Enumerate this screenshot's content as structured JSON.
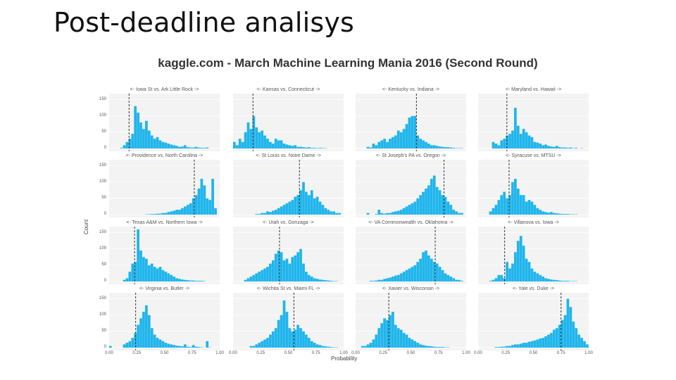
{
  "slide": {
    "title": "Post-deadline analisys"
  },
  "chart_data": {
    "type": "histogram-facets",
    "title": "kaggle.com - March Machine Learning Mania 2016 (Second Round)",
    "xlabel": "Probability",
    "ylabel": "Count",
    "xlim": [
      0,
      1
    ],
    "ylim": [
      0,
      160
    ],
    "y_ticks": [
      "0",
      "50",
      "100",
      "150"
    ],
    "x_ticks": [
      "0.00",
      "0.25",
      "0.50",
      "0.75",
      "1.00"
    ],
    "bar_color": "#1fb5ec",
    "bin_count": 40,
    "grid": true,
    "panels": [
      {
        "label": "<- Iowa St vs. Ark Little Rock ->",
        "cutoff": 0.18,
        "counts": [
          0,
          0,
          0,
          0,
          2,
          10,
          20,
          30,
          45,
          130,
          110,
          80,
          60,
          85,
          55,
          40,
          30,
          35,
          25,
          20,
          18,
          15,
          12,
          10,
          8,
          5,
          6,
          10,
          4,
          3,
          3,
          5,
          3,
          2,
          2,
          3,
          0,
          0,
          0,
          0
        ]
      },
      {
        "label": "<- Kansas vs. Connecticut ->",
        "cutoff": 0.18,
        "counts": [
          20,
          10,
          30,
          20,
          50,
          80,
          60,
          100,
          65,
          50,
          55,
          40,
          30,
          20,
          15,
          30,
          25,
          25,
          15,
          12,
          10,
          8,
          10,
          5,
          5,
          4,
          3,
          4,
          2,
          2,
          1,
          2,
          1,
          1,
          0,
          0,
          0,
          0,
          0,
          0
        ]
      },
      {
        "label": "<- Kentucky vs. Indiana ->",
        "cutoff": 0.55,
        "counts": [
          0,
          0,
          0,
          0,
          5,
          3,
          15,
          10,
          20,
          25,
          30,
          20,
          30,
          35,
          40,
          55,
          50,
          60,
          75,
          95,
          100,
          100,
          40,
          30,
          25,
          20,
          15,
          10,
          10,
          8,
          6,
          5,
          4,
          4,
          3,
          2,
          1,
          1,
          1,
          0
        ]
      },
      {
        "label": "<- Maryland vs. Hawaii ->",
        "cutoff": 0.26,
        "counts": [
          0,
          0,
          0,
          0,
          0,
          20,
          15,
          10,
          25,
          30,
          40,
          45,
          55,
          125,
          70,
          45,
          60,
          50,
          40,
          35,
          20,
          18,
          15,
          10,
          12,
          8,
          6,
          5,
          8,
          4,
          3,
          3,
          2,
          3,
          1,
          2,
          0,
          1,
          0,
          0
        ]
      },
      {
        "label": "<- Providence vs. North Carolina ->",
        "cutoff": 0.77,
        "counts": [
          0,
          0,
          0,
          0,
          0,
          0,
          0,
          0,
          0,
          0,
          0,
          0,
          0,
          1,
          1,
          2,
          2,
          3,
          3,
          5,
          5,
          8,
          10,
          12,
          15,
          15,
          20,
          25,
          30,
          35,
          50,
          60,
          80,
          110,
          90,
          50,
          45,
          110,
          20,
          0
        ]
      },
      {
        "label": "<- St Louis vs. Notre Dame ->",
        "cutoff": 0.6,
        "counts": [
          0,
          0,
          0,
          0,
          0,
          0,
          0,
          0,
          2,
          2,
          5,
          5,
          10,
          8,
          12,
          15,
          20,
          25,
          30,
          35,
          40,
          45,
          55,
          60,
          75,
          100,
          70,
          60,
          75,
          50,
          55,
          40,
          30,
          20,
          15,
          10,
          10,
          5,
          5,
          0
        ]
      },
      {
        "label": "<- St Joseph's PA vs. Oregon ->",
        "cutoff": 0.8,
        "counts": [
          0,
          0,
          0,
          0,
          5,
          0,
          0,
          2,
          15,
          5,
          3,
          5,
          5,
          8,
          10,
          12,
          15,
          20,
          25,
          30,
          35,
          40,
          50,
          60,
          70,
          80,
          90,
          110,
          120,
          85,
          75,
          60,
          55,
          40,
          30,
          15,
          10,
          5,
          5,
          0
        ]
      },
      {
        "label": "<- Syracuse vs. MTSU ->",
        "cutoff": 0.28,
        "counts": [
          0,
          0,
          0,
          0,
          10,
          20,
          30,
          45,
          60,
          70,
          50,
          60,
          100,
          110,
          80,
          60,
          60,
          40,
          45,
          40,
          30,
          20,
          15,
          10,
          8,
          6,
          8,
          5,
          4,
          3,
          2,
          2,
          2,
          1,
          1,
          1,
          0,
          0,
          0,
          0
        ]
      },
      {
        "label": "<- Texas A&M vs. Northern Iowa ->",
        "cutoff": 0.23,
        "counts": [
          0,
          0,
          0,
          0,
          0,
          5,
          10,
          30,
          55,
          60,
          160,
          95,
          75,
          70,
          50,
          55,
          45,
          40,
          45,
          35,
          30,
          25,
          20,
          15,
          10,
          8,
          6,
          5,
          4,
          3,
          3,
          2,
          2,
          2,
          1,
          0,
          0,
          0,
          0,
          0
        ]
      },
      {
        "label": "<- Utah vs. Gonzaga ->",
        "cutoff": 0.42,
        "counts": [
          0,
          0,
          0,
          0,
          5,
          10,
          15,
          20,
          25,
          30,
          35,
          40,
          45,
          55,
          65,
          85,
          95,
          90,
          65,
          70,
          55,
          75,
          80,
          90,
          100,
          55,
          30,
          20,
          15,
          10,
          8,
          6,
          5,
          4,
          3,
          2,
          1,
          1,
          0,
          0
        ]
      },
      {
        "label": "<- VA Commonwealth vs. Oklahoma ->",
        "cutoff": 0.72,
        "counts": [
          0,
          0,
          0,
          0,
          0,
          2,
          2,
          3,
          5,
          5,
          8,
          10,
          12,
          15,
          18,
          20,
          25,
          30,
          35,
          40,
          45,
          50,
          60,
          70,
          90,
          95,
          80,
          70,
          60,
          55,
          45,
          35,
          25,
          20,
          15,
          10,
          5,
          5,
          2,
          0
        ]
      },
      {
        "label": "<- Villanova vs. Iowa ->",
        "cutoff": 0.24,
        "counts": [
          0,
          0,
          0,
          0,
          2,
          5,
          10,
          20,
          20,
          10,
          60,
          40,
          55,
          90,
          125,
          140,
          110,
          70,
          60,
          40,
          30,
          25,
          20,
          15,
          10,
          8,
          6,
          5,
          4,
          3,
          2,
          2,
          2,
          1,
          1,
          1,
          0,
          0,
          0,
          0
        ]
      },
      {
        "label": "<- Virginia vs. Butler ->",
        "cutoff": 0.24,
        "counts": [
          5,
          0,
          0,
          0,
          0,
          10,
          15,
          20,
          30,
          45,
          70,
          90,
          110,
          130,
          100,
          60,
          40,
          30,
          25,
          20,
          15,
          12,
          10,
          8,
          6,
          5,
          4,
          10,
          3,
          2,
          8,
          3,
          2,
          1,
          0,
          20,
          1,
          0,
          0,
          0
        ]
      },
      {
        "label": "<- Wichita St vs. Miami FL ->",
        "cutoff": 0.55,
        "counts": [
          0,
          0,
          0,
          0,
          0,
          0,
          5,
          5,
          10,
          15,
          20,
          25,
          30,
          40,
          50,
          60,
          85,
          100,
          145,
          110,
          60,
          50,
          55,
          70,
          60,
          50,
          40,
          30,
          20,
          15,
          10,
          8,
          5,
          4,
          3,
          2,
          1,
          1,
          0,
          0
        ]
      },
      {
        "label": "<- Xavier vs. Wisconsin ->",
        "cutoff": 0.3,
        "counts": [
          0,
          0,
          5,
          5,
          10,
          15,
          25,
          40,
          60,
          75,
          90,
          85,
          100,
          110,
          70,
          60,
          55,
          45,
          40,
          30,
          25,
          20,
          15,
          10,
          8,
          6,
          5,
          4,
          3,
          2,
          2,
          2,
          1,
          1,
          0,
          0,
          0,
          0,
          0,
          0
        ]
      },
      {
        "label": "<- Yale vs. Duke ->",
        "cutoff": 0.75,
        "counts": [
          0,
          0,
          0,
          0,
          0,
          0,
          2,
          2,
          3,
          3,
          5,
          5,
          8,
          10,
          10,
          12,
          15,
          15,
          18,
          20,
          22,
          25,
          28,
          30,
          35,
          40,
          45,
          55,
          60,
          70,
          85,
          100,
          150,
          125,
          80,
          60,
          40,
          30,
          20,
          10
        ]
      }
    ]
  }
}
